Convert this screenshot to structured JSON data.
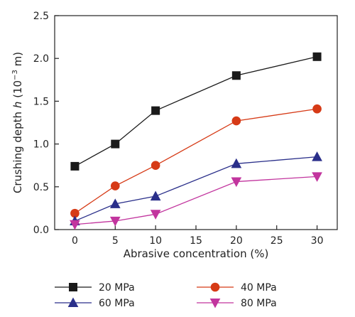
{
  "chart_data": {
    "type": "line",
    "xlabel": "Abrasive concentration (%)",
    "ylabel_prefix": "Crushing depth ",
    "ylabel_var": "h",
    "ylabel_unit_open": " (10",
    "ylabel_unit_exp": "−3",
    "ylabel_unit_close": " m)",
    "xlim": [
      -2.5,
      32.5
    ],
    "ylim": [
      0,
      2.5
    ],
    "xticks": [
      0,
      5,
      10,
      15,
      20,
      25,
      30
    ],
    "yticks": [
      0.0,
      0.5,
      1.0,
      1.5,
      2.0,
      2.5
    ],
    "ytick_labels": [
      "0.0",
      "0.5",
      "1.0",
      "1.5",
      "2.0",
      "2.5"
    ],
    "x": [
      0,
      5,
      10,
      20,
      30
    ],
    "grid": false,
    "legend_position": "below",
    "series": [
      {
        "name": "20 MPa",
        "color": "#1a1a1a",
        "marker": "square",
        "values": [
          0.74,
          1.0,
          1.39,
          1.8,
          2.02
        ]
      },
      {
        "name": "40 MPa",
        "color": "#d63a16",
        "marker": "circle",
        "values": [
          0.19,
          0.51,
          0.75,
          1.27,
          1.41
        ]
      },
      {
        "name": "60 MPa",
        "color": "#2a2f8a",
        "marker": "triangle-up",
        "values": [
          0.1,
          0.3,
          0.39,
          0.77,
          0.85
        ]
      },
      {
        "name": "80 MPa",
        "color": "#c2359e",
        "marker": "triangle-down",
        "values": [
          0.06,
          0.1,
          0.18,
          0.56,
          0.62
        ]
      }
    ]
  }
}
